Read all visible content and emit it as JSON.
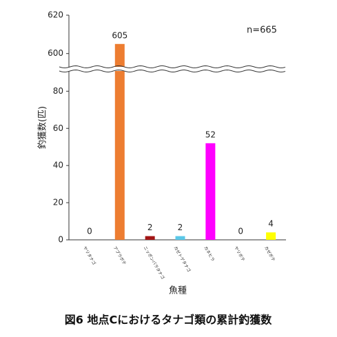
{
  "chart_data": {
    "type": "bar",
    "caption": "図6 地点Cにおけるタナゴ類の累計釣獲数",
    "annotation": "n=665",
    "x_label": "魚種",
    "y_label": "釣獲数(匹)",
    "categories": [
      "ヤリタナゴ",
      "アブラボテ",
      "ニッポンバラタナゴ",
      "カゼトゲタナゴ",
      "カネヒラ",
      "ヤリボテ",
      "カゼボテ"
    ],
    "values": [
      0,
      605,
      2,
      2,
      52,
      0,
      4
    ],
    "colors": [
      "#cccccc",
      "#ed7d31",
      "#a31515",
      "#5bc8e8",
      "#ff00ff",
      "#cccccc",
      "#ffff00"
    ],
    "ylim": [
      0,
      620
    ],
    "ybreak": [
      92,
      592
    ],
    "yticks": [
      0,
      20,
      40,
      60,
      80,
      600,
      620
    ]
  }
}
